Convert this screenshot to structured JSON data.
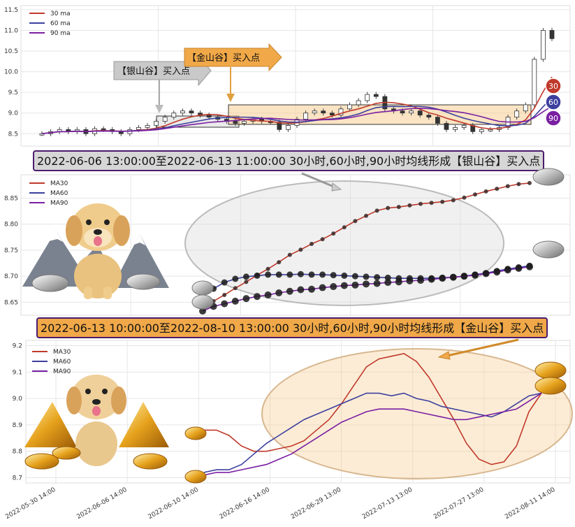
{
  "colors": {
    "ma30": "#c0392b",
    "ma60": "#3c3f9e",
    "ma90": "#7a1fa2",
    "silver_fill": "#d9d9d9",
    "gold_fill": "#f5c98a",
    "banner1_fill": "#d6d6d6",
    "banner2_fill": "#f0a848",
    "banner_border": "#4b1c6e"
  },
  "legend": {
    "top": [
      "30 ma",
      "60 ma",
      "90 ma"
    ],
    "mid": [
      "MA30",
      "MA60",
      "MA90"
    ],
    "bottom": [
      "MA30",
      "MA60",
      "MA90"
    ]
  },
  "badges": [
    "30",
    "60",
    "90"
  ],
  "arrows": {
    "silver_label": "【银山谷】买入点",
    "gold_label": "【金山谷】买入点"
  },
  "banners": {
    "silver": "2022-06-06 13:00:00至2022-06-13 11:00:00 30小时,60小时,90小时均线形成【银山谷】买入点",
    "gold": "2022-06-13 10:00:00至2022-08-10 13:00:00 30小时,60小时,90小时均线形成【金山谷】买入点"
  },
  "chart_data": [
    {
      "type": "candlestick",
      "y_ticks": [
        "8.5",
        "9.0",
        "9.5",
        "10.0",
        "10.5",
        "11.0",
        "11.5"
      ],
      "ylim": [
        8.2,
        11.6
      ],
      "close_approx": [
        8.5,
        8.55,
        8.6,
        8.55,
        8.6,
        8.5,
        8.62,
        8.6,
        8.55,
        8.5,
        8.6,
        8.65,
        8.7,
        8.8,
        8.9,
        9.0,
        9.05,
        9.0,
        8.95,
        8.9,
        8.85,
        8.8,
        8.75,
        8.8,
        8.85,
        8.8,
        8.78,
        8.6,
        8.7,
        8.85,
        9.0,
        9.05,
        9.0,
        8.95,
        9.1,
        9.2,
        9.3,
        9.45,
        9.4,
        9.1,
        9.05,
        9.0,
        9.05,
        8.95,
        8.9,
        8.75,
        8.6,
        8.65,
        8.7,
        8.55,
        8.6,
        8.6,
        8.65,
        8.9,
        9.05,
        9.2,
        10.3,
        11.0,
        10.8
      ]
    },
    {
      "type": "line",
      "series": [
        {
          "name": "MA30",
          "values": [
            8.643,
            8.652,
            8.664,
            8.677,
            8.689,
            8.702,
            8.714,
            8.727,
            8.741,
            8.751,
            8.762,
            8.771,
            8.782,
            8.794,
            8.806,
            8.816,
            8.826,
            8.831,
            8.833,
            8.836,
            8.839,
            8.841,
            8.843,
            8.846,
            8.851,
            8.857,
            8.863,
            8.868,
            8.873,
            8.877,
            8.879
          ]
        },
        {
          "name": "MA60",
          "values": [
            8.666,
            8.676,
            8.688,
            8.695,
            8.699,
            8.701,
            8.703,
            8.703,
            8.703,
            8.704,
            8.703,
            8.703,
            8.702,
            8.701,
            8.7,
            8.699,
            8.698,
            8.697,
            8.696,
            8.696,
            8.696,
            8.696,
            8.697,
            8.698,
            8.7,
            8.703,
            8.706,
            8.71,
            8.714,
            8.717,
            8.72
          ]
        },
        {
          "name": "MA90",
          "values": [
            8.633,
            8.642,
            8.647,
            8.652,
            8.657,
            8.661,
            8.664,
            8.668,
            8.671,
            8.674,
            8.675,
            8.678,
            8.68,
            8.682,
            8.683,
            8.685,
            8.686,
            8.688,
            8.689,
            8.691,
            8.692,
            8.694,
            8.696,
            8.698,
            8.7,
            8.702,
            8.705,
            8.708,
            8.712,
            8.715,
            8.718
          ]
        }
      ],
      "y_ticks": [
        "8.65",
        "8.70",
        "8.75",
        "8.80",
        "8.85"
      ],
      "ylim": [
        8.625,
        8.895
      ]
    },
    {
      "type": "line",
      "x_ticks": [
        "2022-05-30 14:00",
        "2022-06-06 14:00",
        "2022-06-10 14:00",
        "2022-06-16 14:00",
        "2022-06-29 13:00",
        "2022-07-13 13:00",
        "2022-07-27 13:00",
        "2022-08-11 14:00"
      ],
      "series": [
        {
          "name": "MA30",
          "values": [
            8.88,
            8.88,
            8.86,
            8.82,
            8.8,
            8.8,
            8.81,
            8.82,
            8.84,
            8.88,
            8.92,
            8.98,
            9.05,
            9.12,
            9.15,
            9.16,
            9.17,
            9.14,
            9.08,
            9.0,
            8.92,
            8.83,
            8.77,
            8.75,
            8.76,
            8.82,
            8.95,
            9.02
          ]
        },
        {
          "name": "MA60",
          "values": [
            8.72,
            8.73,
            8.73,
            8.75,
            8.79,
            8.83,
            8.86,
            8.89,
            8.92,
            8.94,
            8.96,
            8.98,
            9.0,
            9.02,
            9.02,
            9.01,
            9.02,
            9.0,
            8.99,
            8.97,
            8.96,
            8.95,
            8.94,
            8.93,
            8.95,
            8.98,
            9.01,
            9.02
          ]
        },
        {
          "name": "MA90",
          "values": [
            8.71,
            8.72,
            8.72,
            8.73,
            8.74,
            8.75,
            8.77,
            8.79,
            8.82,
            8.85,
            8.88,
            8.91,
            8.93,
            8.95,
            8.96,
            8.96,
            8.96,
            8.95,
            8.94,
            8.93,
            8.92,
            8.92,
            8.93,
            8.94,
            8.95,
            8.96,
            8.99,
            9.02
          ]
        }
      ],
      "y_ticks": [
        "8.7",
        "8.8",
        "8.9",
        "9.0",
        "9.1",
        "9.2"
      ],
      "ylim": [
        8.68,
        9.22
      ]
    }
  ]
}
